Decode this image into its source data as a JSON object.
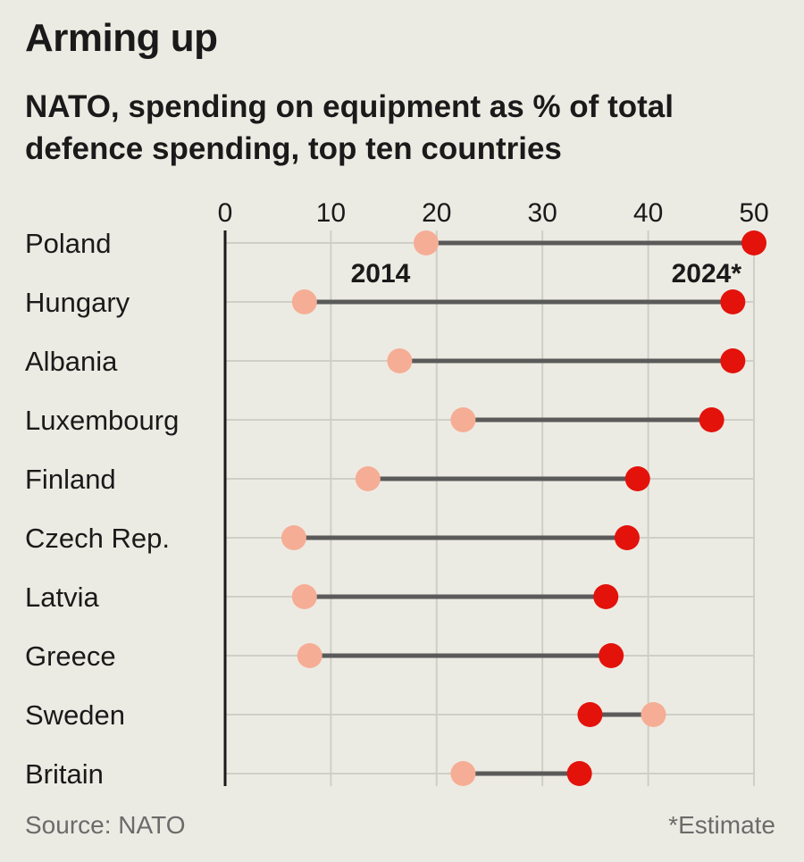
{
  "title": "Arming up",
  "subtitle_lines": [
    "NATO, spending on equipment as % of total",
    "defence spending, top ten countries"
  ],
  "source": "Source: NATO",
  "footnote": "*Estimate",
  "colors": {
    "background": "#ecebe3",
    "series_2014": "#f6ad95",
    "series_2024": "#e3120b",
    "connector": "#5a5a5a",
    "grid": "#cfcec7",
    "axis": "#1a1a1a"
  },
  "chart_data": {
    "type": "dumbbell",
    "xlim": [
      0,
      50
    ],
    "xticks": [
      0,
      10,
      20,
      30,
      40,
      50
    ],
    "grid": true,
    "series": [
      {
        "name": "2014",
        "values": [
          19,
          7.5,
          16.5,
          22.5,
          13.5,
          6.5,
          7.5,
          8,
          40.5,
          22.5
        ]
      },
      {
        "name": "2024*",
        "values": [
          50,
          48,
          48,
          46,
          39,
          38,
          36,
          36.5,
          34.5,
          33.5
        ]
      }
    ],
    "categories": [
      "Poland",
      "Hungary",
      "Albania",
      "Luxembourg",
      "Finland",
      "Czech Rep.",
      "Latvia",
      "Greece",
      "Sweden",
      "Britain"
    ]
  }
}
